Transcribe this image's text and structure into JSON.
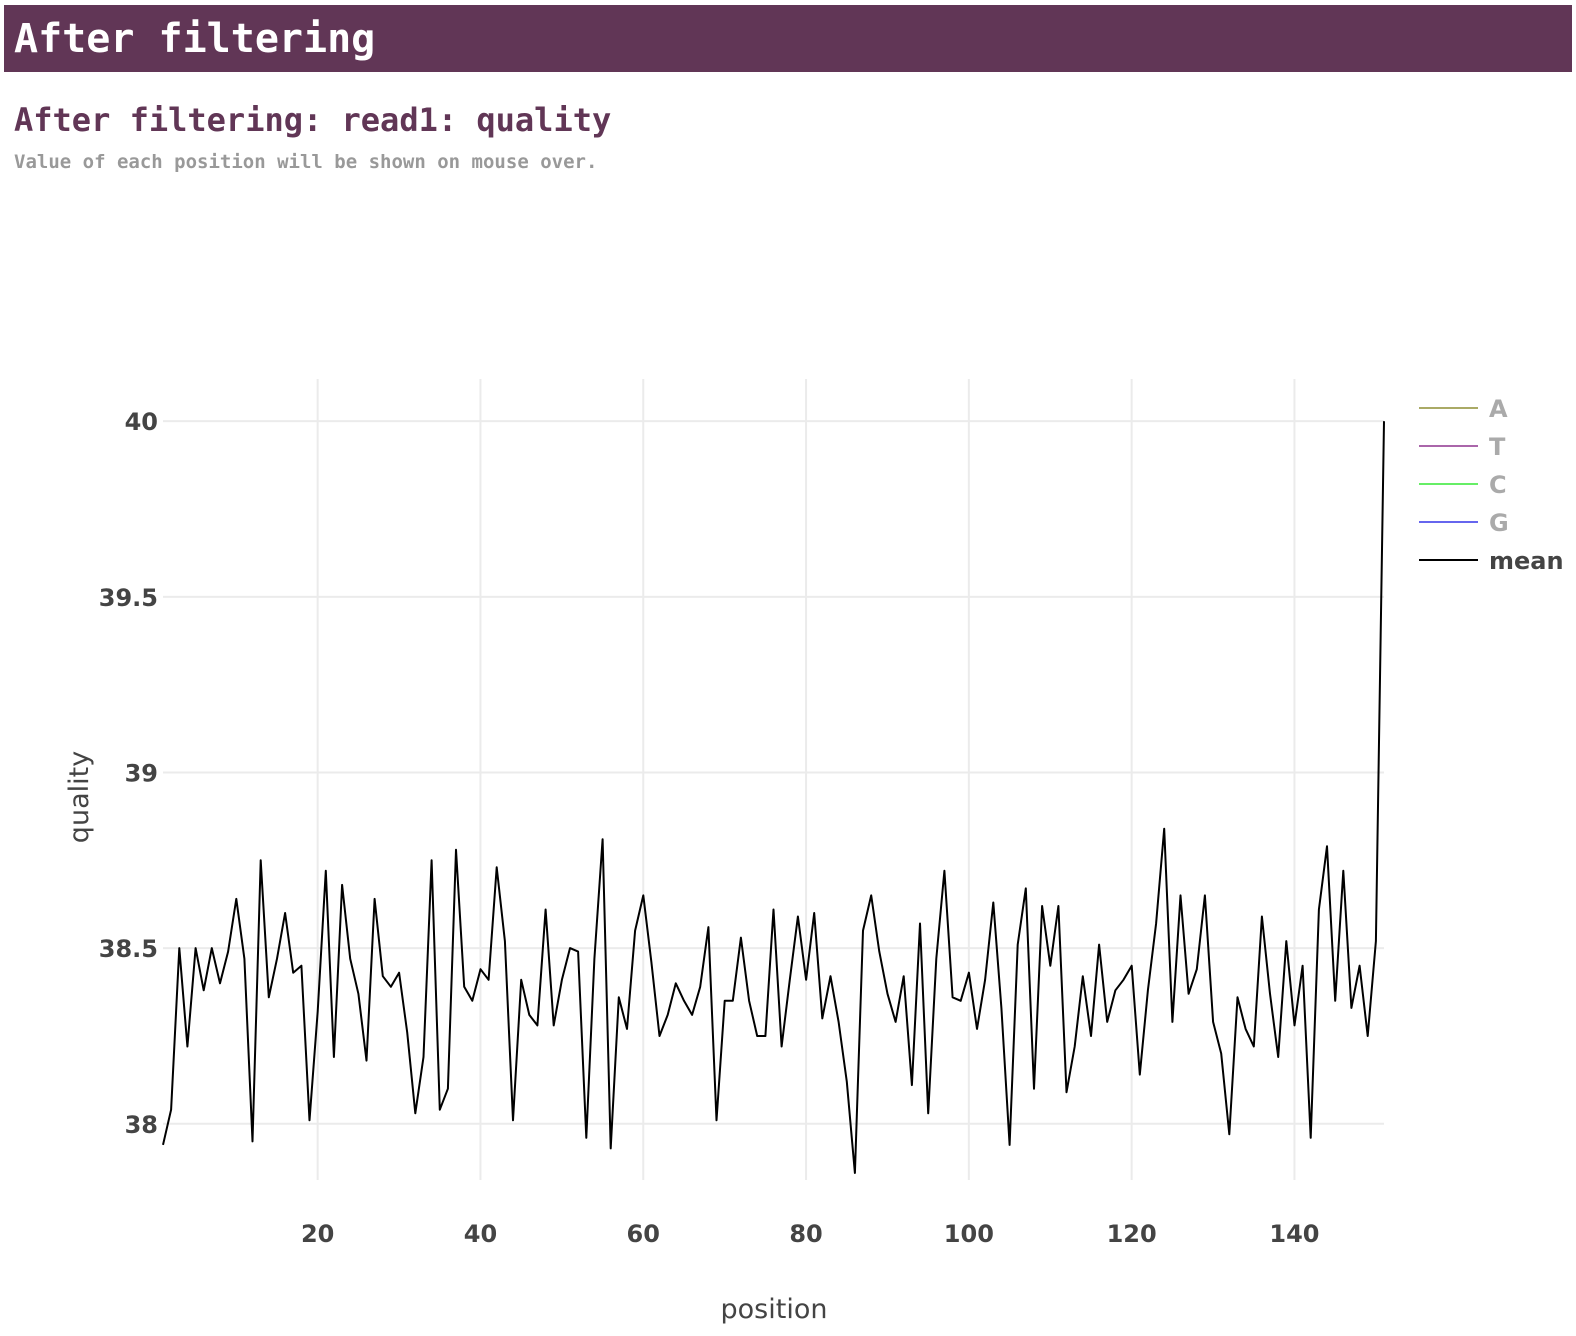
{
  "header": {
    "title": "After filtering"
  },
  "section": {
    "title": "After filtering: read1: quality",
    "hint": "Value of each position will be shown on mouse over."
  },
  "chart_data": {
    "type": "line",
    "title": "",
    "xlabel": "position",
    "ylabel": "quality",
    "xlim": [
      1,
      151
    ],
    "ylim": [
      37.84,
      40.12
    ],
    "x_ticks": [
      20,
      40,
      60,
      80,
      100,
      120,
      140
    ],
    "y_ticks": [
      38,
      38.5,
      39,
      39.5,
      40
    ],
    "y_tick_labels": [
      "38",
      "38.5",
      "39",
      "39.5",
      "40"
    ],
    "grid": true,
    "legend_position": "top-right",
    "series": [
      {
        "name": "A",
        "color": "#aaaa66",
        "values": []
      },
      {
        "name": "T",
        "color": "#aa66aa",
        "values": []
      },
      {
        "name": "C",
        "color": "#66ee66",
        "values": []
      },
      {
        "name": "G",
        "color": "#6666ee",
        "values": []
      },
      {
        "name": "mean",
        "color": "#000000",
        "x_start": 1,
        "values": [
          37.94,
          38.04,
          38.5,
          38.22,
          38.5,
          38.38,
          38.5,
          38.4,
          38.49,
          38.64,
          38.47,
          37.95,
          38.75,
          38.36,
          38.47,
          38.6,
          38.43,
          38.45,
          38.01,
          38.32,
          38.72,
          38.19,
          38.68,
          38.47,
          38.37,
          38.18,
          38.64,
          38.42,
          38.39,
          38.43,
          38.26,
          38.03,
          38.19,
          38.75,
          38.04,
          38.1,
          38.78,
          38.39,
          38.35,
          38.44,
          38.41,
          38.73,
          38.52,
          38.01,
          38.41,
          38.31,
          38.28,
          38.61,
          38.28,
          38.41,
          38.5,
          38.49,
          37.96,
          38.47,
          38.81,
          37.93,
          38.36,
          38.27,
          38.55,
          38.65,
          38.46,
          38.25,
          38.31,
          38.4,
          38.35,
          38.31,
          38.39,
          38.56,
          38.01,
          38.35,
          38.35,
          38.53,
          38.35,
          38.25,
          38.25,
          38.61,
          38.22,
          38.41,
          38.59,
          38.41,
          38.6,
          38.3,
          38.42,
          38.29,
          38.12,
          37.86,
          38.55,
          38.65,
          38.49,
          38.37,
          38.29,
          38.42,
          38.11,
          38.57,
          38.03,
          38.47,
          38.72,
          38.36,
          38.35,
          38.43,
          38.27,
          38.41,
          38.63,
          38.33,
          37.94,
          38.51,
          38.67,
          38.1,
          38.62,
          38.45,
          38.62,
          38.09,
          38.22,
          38.42,
          38.25,
          38.51,
          38.29,
          38.38,
          38.41,
          38.45,
          38.14,
          38.38,
          38.57,
          38.84,
          38.29,
          38.65,
          38.37,
          38.44,
          38.65,
          38.29,
          38.2,
          37.97,
          38.36,
          38.27,
          38.22,
          38.59,
          38.37,
          38.19,
          38.52,
          38.28,
          38.45,
          37.96,
          38.61,
          38.79,
          38.35,
          38.72,
          38.33,
          38.45,
          38.25,
          38.52,
          40.0
        ]
      }
    ]
  }
}
